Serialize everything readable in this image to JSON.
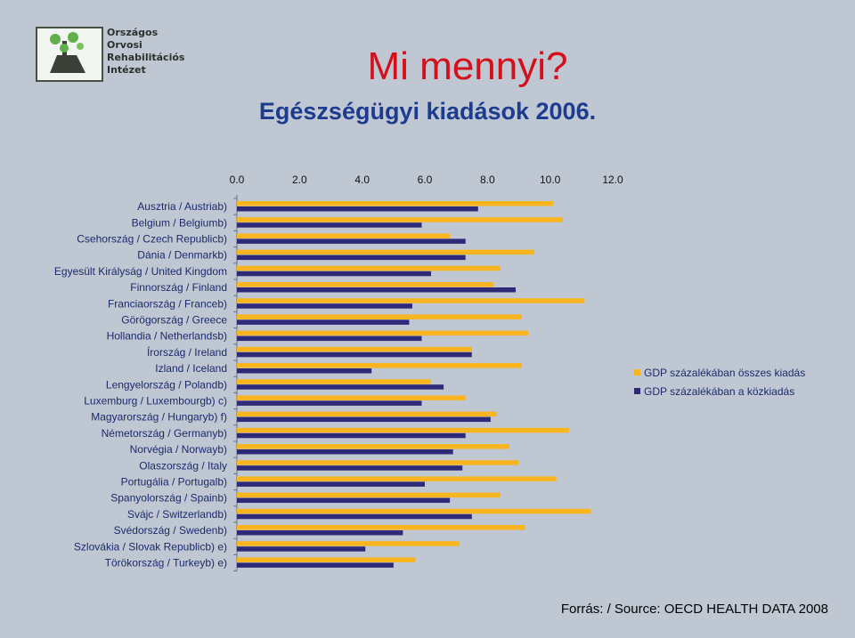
{
  "header": {
    "logo_lines": [
      "Országos",
      "Orvosi",
      "Rehabilitációs",
      "Intézet"
    ],
    "title": "Mi mennyi?",
    "subtitle": "Egészségügyi kiadások 2006."
  },
  "colors": {
    "total": "#f9b51f",
    "public": "#2e2a78",
    "background": "#bfc7d3",
    "title": "#d3101b",
    "subtitle": "#1d3c8f"
  },
  "chart_data": {
    "type": "bar",
    "orientation": "horizontal",
    "xlim": [
      0,
      12
    ],
    "x_ticks": [
      "0.0",
      "2.0",
      "4.0",
      "6.0",
      "8.0",
      "10.0",
      "12.0"
    ],
    "tick_values": [
      0,
      2,
      4,
      6,
      8,
      10,
      12
    ],
    "grid": false,
    "legend_position": "right",
    "categories": [
      "Ausztria / Austriab)",
      "Belgium / Belgiumb)",
      "Csehország / Czech Republicb)",
      "Dánia / Denmarkb)",
      "Egyesült Királyság / United Kingdom",
      "Finnország / Finland",
      "Franciaország / Franceb)",
      "Görögország / Greece",
      "Hollandia / Netherlandsb)",
      "Írország / Ireland",
      "Izland / Iceland",
      "Lengyelország / Polandb)",
      "Luxemburg / Luxembourgb) c)",
      "Magyarország / Hungaryb) f)",
      "Németország / Germanyb)",
      "Norvégia / Norwayb)",
      "Olaszország / Italy",
      "Portugália / Portugalb)",
      "Spanyolország / Spainb)",
      "Svájc / Switzerlandb)",
      "Svédország / Swedenb)",
      "Szlovákia / Slovak Republicb) e)",
      "Törökország / Turkeyb) e)"
    ],
    "series": [
      {
        "name": "GDP százalékában összes kiadás",
        "color": "#f9b51f",
        "values": [
          10.1,
          10.4,
          6.8,
          9.5,
          8.4,
          8.2,
          11.1,
          9.1,
          9.3,
          7.5,
          9.1,
          6.2,
          7.3,
          8.3,
          10.6,
          8.7,
          9.0,
          10.2,
          8.4,
          11.3,
          9.2,
          7.1,
          5.7
        ]
      },
      {
        "name": "GDP százalékában a közkiadás",
        "color": "#2e2a78",
        "values": [
          7.7,
          5.9,
          7.3,
          7.3,
          6.2,
          8.9,
          5.6,
          5.5,
          5.9,
          7.5,
          4.3,
          6.6,
          5.9,
          8.1,
          7.3,
          6.9,
          7.2,
          6.0,
          6.8,
          7.5,
          5.3,
          4.1,
          5.0
        ]
      }
    ]
  },
  "source": "Forrás: / Source:  OECD HEALTH DATA 2008"
}
